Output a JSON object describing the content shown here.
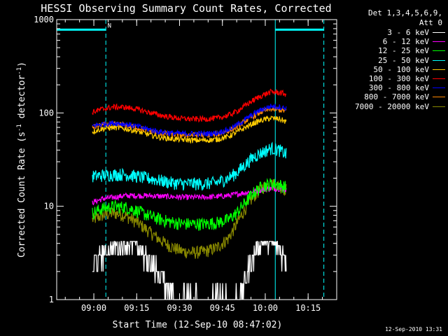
{
  "header": {
    "title": "HESSI Observing Summary Count Rates, Corrected"
  },
  "legend": {
    "detectors": "Det 1,3,4,5,6,9,",
    "attenuator": "Att 0",
    "entries": [
      {
        "label": "3 - 6 keV",
        "color": "#ffffff"
      },
      {
        "label": "6 - 12 keV",
        "color": "#ff00ff"
      },
      {
        "label": "12 - 25 keV",
        "color": "#00ff00"
      },
      {
        "label": "25 - 50 keV",
        "color": "#00ffff"
      },
      {
        "label": "50 - 100 keV",
        "color": "#ffcc00"
      },
      {
        "label": "100 - 300 keV",
        "color": "#ff0000"
      },
      {
        "label": "300 - 800 keV",
        "color": "#0000ff"
      },
      {
        "label": "800 - 7000 keV",
        "color": "#ff8800"
      },
      {
        "label": "7000 - 20000 keV",
        "color": "#888800"
      }
    ]
  },
  "footer": {
    "timestamp": "12-Sep-2010 13:31"
  },
  "chart_data": {
    "type": "line",
    "title": "HESSI Observing Summary Count Rates, Corrected",
    "xlabel": "Start Time (12-Sep-10 08:47:02)",
    "ylabel": "Corrected Count Rate (s^-1 detector^-1)",
    "ylabel_parts": {
      "main": "Corrected Count Rate (s",
      "sup1": "-1",
      "mid": " detector",
      "sup2": "-1",
      "end": ")"
    },
    "x_unit": "minutes after 08:47:02",
    "xlim": [
      0,
      98
    ],
    "ylim": [
      1,
      1000
    ],
    "yscale": "log",
    "grid": false,
    "legend_position": "outside-right",
    "xticks": [
      {
        "t": 13,
        "label": "09:00"
      },
      {
        "t": 28,
        "label": "09:15"
      },
      {
        "t": 43,
        "label": "09:30"
      },
      {
        "t": 58,
        "label": "09:45"
      },
      {
        "t": 73,
        "label": "10:00"
      },
      {
        "t": 88,
        "label": "10:15"
      }
    ],
    "yticks": [
      {
        "v": 1,
        "label": "1"
      },
      {
        "v": 10,
        "label": "10"
      },
      {
        "v": 100,
        "label": "100"
      },
      {
        "v": 1000,
        "label": "1000"
      }
    ],
    "annotations": [
      {
        "text": "N",
        "t": 17.8,
        "v": 820
      }
    ],
    "event_markers": [
      {
        "t": 0,
        "style": "solid"
      },
      {
        "t": 17.2,
        "style": "dashed"
      },
      {
        "t": 76.5,
        "style": "solid"
      },
      {
        "t": 93.5,
        "style": "dashed"
      }
    ],
    "night_bars": [
      {
        "from": 0,
        "to": 17.2,
        "v": 780
      },
      {
        "from": 76.5,
        "to": 93.5,
        "v": 780
      }
    ],
    "data_start": 12.5,
    "data_end": 80.5,
    "series": [
      {
        "name": "3 - 6 keV",
        "color": "#ffffff",
        "points": [
          [
            12.5,
            2
          ],
          [
            16,
            3
          ],
          [
            20,
            3.5
          ],
          [
            24,
            4
          ],
          [
            28,
            3.8
          ],
          [
            30,
            3
          ],
          [
            34,
            2.2
          ],
          [
            38,
            1.5
          ],
          [
            42,
            1
          ],
          [
            46,
            1
          ],
          [
            50,
            1
          ],
          [
            54,
            1
          ],
          [
            58,
            1
          ],
          [
            62,
            1
          ],
          [
            65,
            1.2
          ],
          [
            68,
            2.5
          ],
          [
            71,
            4
          ],
          [
            74,
            4.2
          ],
          [
            77,
            3.6
          ],
          [
            80.5,
            2.6
          ]
        ]
      },
      {
        "name": "6 - 12 keV",
        "color": "#ff00ff",
        "points": [
          [
            12.5,
            11
          ],
          [
            16,
            12
          ],
          [
            20,
            12.5
          ],
          [
            24,
            13
          ],
          [
            28,
            13
          ],
          [
            32,
            13
          ],
          [
            36,
            12.8
          ],
          [
            40,
            12.7
          ],
          [
            44,
            12.5
          ],
          [
            48,
            12.5
          ],
          [
            52,
            12.5
          ],
          [
            56,
            12.7
          ],
          [
            60,
            13
          ],
          [
            63,
            13.5
          ],
          [
            66,
            14
          ],
          [
            69,
            14.5
          ],
          [
            72,
            15
          ],
          [
            75,
            15.5
          ],
          [
            78,
            15.5
          ],
          [
            80.5,
            15
          ]
        ]
      },
      {
        "name": "12 - 25 keV",
        "color": "#00ff00",
        "points": [
          [
            12.5,
            8.5
          ],
          [
            16,
            9.5
          ],
          [
            20,
            10
          ],
          [
            24,
            9.8
          ],
          [
            28,
            9
          ],
          [
            32,
            8
          ],
          [
            36,
            7.3
          ],
          [
            40,
            6.8
          ],
          [
            44,
            6.5
          ],
          [
            48,
            6.5
          ],
          [
            52,
            6.5
          ],
          [
            56,
            6.7
          ],
          [
            60,
            7.2
          ],
          [
            63,
            8.5
          ],
          [
            66,
            11
          ],
          [
            69,
            14
          ],
          [
            72,
            16.5
          ],
          [
            75,
            17.5
          ],
          [
            78,
            17
          ],
          [
            80.5,
            16
          ]
        ]
      },
      {
        "name": "25 - 50 keV",
        "color": "#00ffff",
        "points": [
          [
            12.5,
            21
          ],
          [
            16,
            21.5
          ],
          [
            20,
            22
          ],
          [
            24,
            22
          ],
          [
            28,
            21
          ],
          [
            32,
            20
          ],
          [
            36,
            19
          ],
          [
            40,
            18
          ],
          [
            44,
            17.5
          ],
          [
            48,
            17.5
          ],
          [
            52,
            17.5
          ],
          [
            56,
            18
          ],
          [
            60,
            20
          ],
          [
            63,
            23
          ],
          [
            66,
            28
          ],
          [
            69,
            34
          ],
          [
            72,
            38
          ],
          [
            75,
            42
          ],
          [
            78,
            40
          ],
          [
            80.5,
            36
          ]
        ]
      },
      {
        "name": "50 - 100 keV",
        "color": "#ffcc00",
        "points": [
          [
            12.5,
            63
          ],
          [
            16,
            68
          ],
          [
            20,
            70
          ],
          [
            24,
            68
          ],
          [
            28,
            64
          ],
          [
            32,
            59
          ],
          [
            36,
            55
          ],
          [
            40,
            53
          ],
          [
            44,
            52
          ],
          [
            48,
            51
          ],
          [
            52,
            51
          ],
          [
            56,
            52
          ],
          [
            60,
            56
          ],
          [
            63,
            62
          ],
          [
            66,
            70
          ],
          [
            69,
            78
          ],
          [
            72,
            84
          ],
          [
            75,
            88
          ],
          [
            78,
            86
          ],
          [
            80.5,
            80
          ]
        ]
      },
      {
        "name": "100 - 300 keV",
        "color": "#ff0000",
        "points": [
          [
            12.5,
            102
          ],
          [
            16,
            110
          ],
          [
            20,
            116
          ],
          [
            24,
            115
          ],
          [
            28,
            110
          ],
          [
            32,
            102
          ],
          [
            36,
            95
          ],
          [
            40,
            90
          ],
          [
            44,
            87
          ],
          [
            48,
            86
          ],
          [
            52,
            86
          ],
          [
            56,
            88
          ],
          [
            60,
            94
          ],
          [
            63,
            104
          ],
          [
            66,
            120
          ],
          [
            69,
            138
          ],
          [
            72,
            155
          ],
          [
            75,
            168
          ],
          [
            78,
            165
          ],
          [
            80.5,
            158
          ]
        ]
      },
      {
        "name": "300 - 800 keV",
        "color": "#0000ff",
        "points": [
          [
            12.5,
            73
          ],
          [
            16,
            76
          ],
          [
            20,
            78
          ],
          [
            24,
            76
          ],
          [
            28,
            72
          ],
          [
            32,
            67
          ],
          [
            36,
            63
          ],
          [
            40,
            61
          ],
          [
            44,
            60
          ],
          [
            48,
            60
          ],
          [
            52,
            60
          ],
          [
            56,
            61
          ],
          [
            60,
            66
          ],
          [
            63,
            74
          ],
          [
            66,
            85
          ],
          [
            69,
            98
          ],
          [
            72,
            110
          ],
          [
            75,
            118
          ],
          [
            78,
            116
          ],
          [
            80.5,
            112
          ]
        ]
      },
      {
        "name": "800 - 7000 keV",
        "color": "#ff8800",
        "points": [
          [
            12.5,
            70
          ],
          [
            16,
            74
          ],
          [
            20,
            76
          ],
          [
            24,
            74
          ],
          [
            28,
            70
          ],
          [
            32,
            65
          ],
          [
            36,
            61
          ],
          [
            40,
            59
          ],
          [
            44,
            58
          ],
          [
            48,
            58
          ],
          [
            52,
            58
          ],
          [
            56,
            59
          ],
          [
            60,
            64
          ],
          [
            63,
            71
          ],
          [
            66,
            82
          ],
          [
            69,
            93
          ],
          [
            72,
            104
          ],
          [
            75,
            110
          ],
          [
            78,
            108
          ],
          [
            80.5,
            104
          ]
        ]
      },
      {
        "name": "7000 - 20000 keV",
        "color": "#888800",
        "points": [
          [
            12.5,
            7.2
          ],
          [
            16,
            8
          ],
          [
            20,
            8.5
          ],
          [
            24,
            8
          ],
          [
            28,
            6.8
          ],
          [
            32,
            5.5
          ],
          [
            36,
            4.4
          ],
          [
            40,
            3.7
          ],
          [
            44,
            3.3
          ],
          [
            48,
            3.2
          ],
          [
            52,
            3.3
          ],
          [
            56,
            3.6
          ],
          [
            60,
            4.5
          ],
          [
            63,
            6.5
          ],
          [
            66,
            9.5
          ],
          [
            69,
            13
          ],
          [
            72,
            16
          ],
          [
            75,
            17.5
          ],
          [
            78,
            16.5
          ],
          [
            80.5,
            15
          ]
        ]
      }
    ]
  }
}
